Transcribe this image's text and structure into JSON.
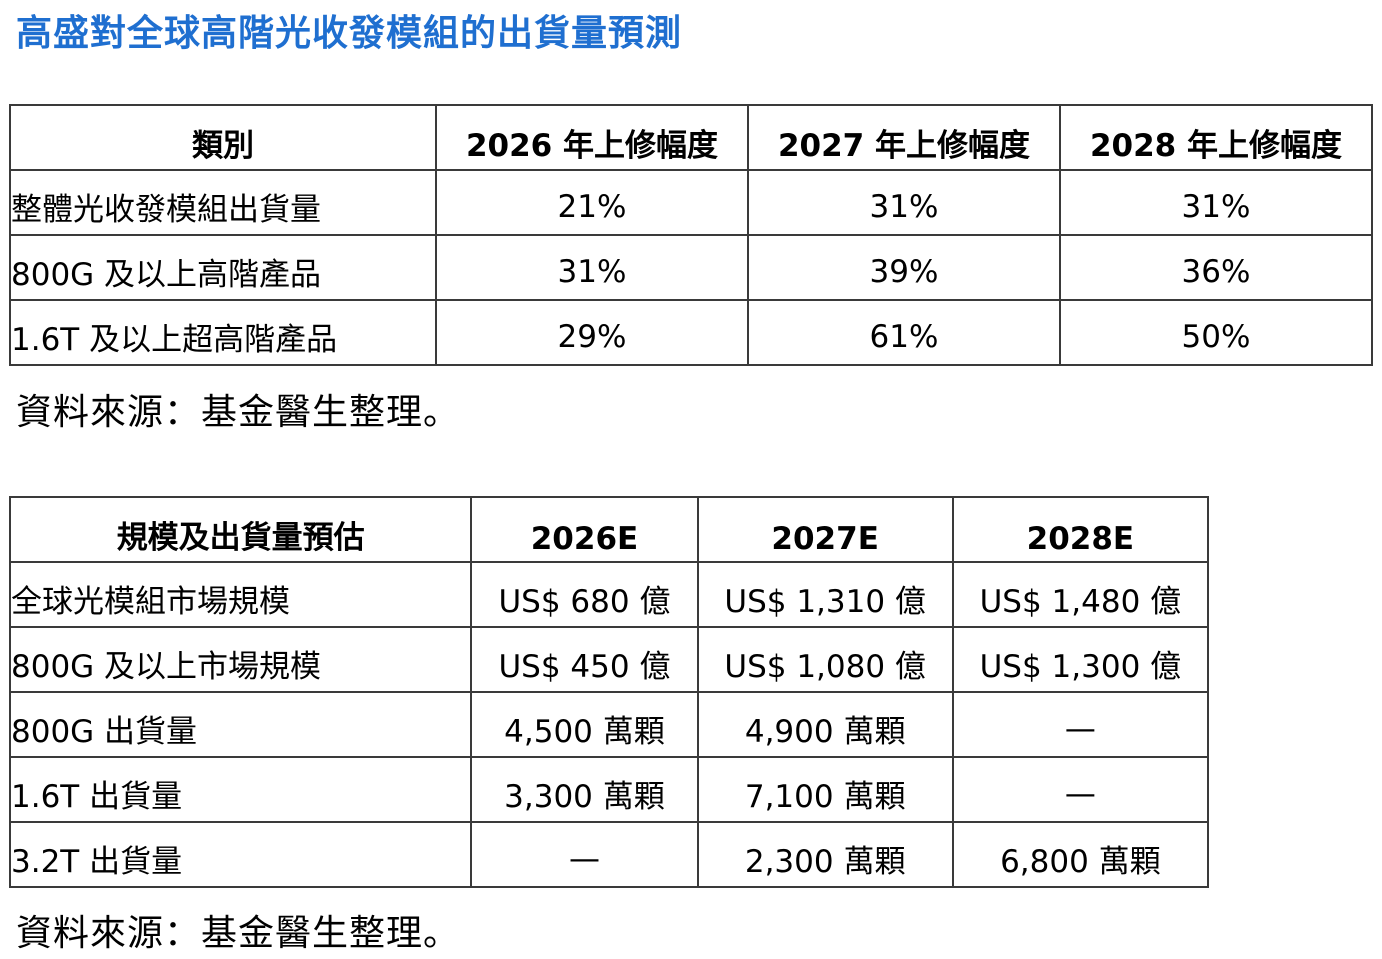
{
  "title": "高盛對全球高階光收發模組的出貨量預測",
  "table1": {
    "headers": [
      "類別",
      "2026 年上修幅度",
      "2027 年上修幅度",
      "2028 年上修幅度"
    ],
    "rows": [
      [
        "整體光收發模組出貨量",
        "21%",
        "31%",
        "31%"
      ],
      [
        "800G 及以上高階產品",
        "31%",
        "39%",
        "36%"
      ],
      [
        "1.6T 及以上超高階產品",
        "29%",
        "61%",
        "50%"
      ]
    ],
    "source": "資料來源：基金醫生整理。"
  },
  "table2": {
    "headers": [
      "規模及出貨量預估",
      "2026E",
      "2027E",
      "2028E"
    ],
    "rows": [
      [
        "全球光模組市場規模",
        "US$ 680 億",
        "US$ 1,310 億",
        "US$ 1,480 億"
      ],
      [
        "800G 及以上市場規模",
        "US$ 450 億",
        "US$ 1,080 億",
        "US$ 1,300 億"
      ],
      [
        "800G 出貨量",
        "4,500 萬顆",
        "4,900 萬顆",
        "—"
      ],
      [
        "1.6T 出貨量",
        "3,300 萬顆",
        "7,100 萬顆",
        "—"
      ],
      [
        "3.2T 出貨量",
        "—",
        "2,300 萬顆",
        "6,800 萬顆"
      ]
    ],
    "source": "資料來源：基金醫生整理。"
  },
  "colors": {
    "title": "#1f6fd0",
    "border": "#3a3a3a",
    "text": "#000000"
  }
}
